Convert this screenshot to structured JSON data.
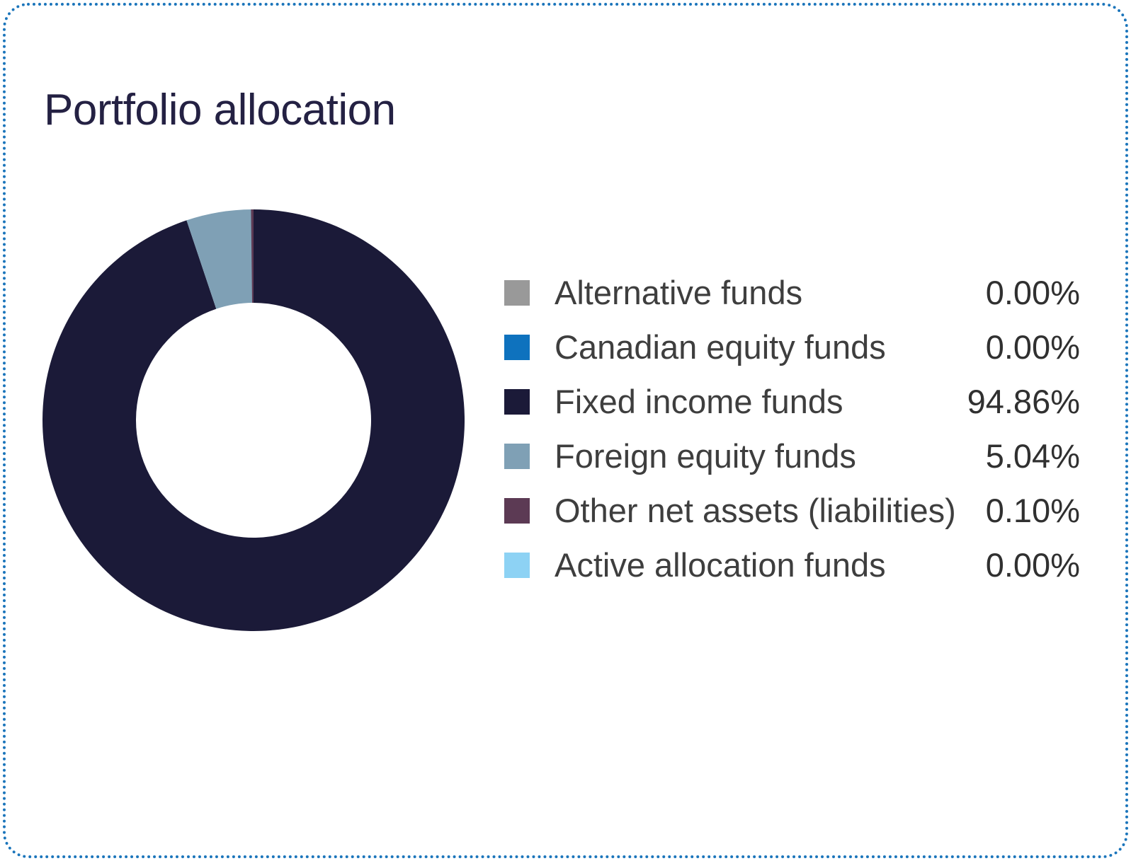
{
  "card": {
    "title": "Portfolio allocation",
    "background": "#FFFFFF",
    "border_color": "#1B75BB"
  },
  "legend": {
    "items": [
      {
        "label": "Alternative funds",
        "value": "0.00%",
        "color": "#999999"
      },
      {
        "label": "Canadian equity funds",
        "value": "0.00%",
        "color": "#0E72BE"
      },
      {
        "label": "Fixed income funds",
        "value": "94.86%",
        "color": "#1B1A38"
      },
      {
        "label": "Foreign equity funds",
        "value": "5.04%",
        "color": "#7FA0B5"
      },
      {
        "label": "Other net assets (liabilities)",
        "value": "0.10%",
        "color": "#5C3A54"
      },
      {
        "label": "Active allocation funds",
        "value": "0.00%",
        "color": "#8DD2F4"
      }
    ]
  },
  "chart_data": {
    "type": "pie",
    "subtype": "donut",
    "title": "Portfolio allocation",
    "categories": [
      "Alternative funds",
      "Canadian equity funds",
      "Fixed income funds",
      "Foreign equity funds",
      "Other net assets (liabilities)",
      "Active allocation funds"
    ],
    "values": [
      0.0,
      0.0,
      94.86,
      5.04,
      0.1,
      0.0
    ],
    "value_labels": [
      "0.00%",
      "0.00%",
      "94.86%",
      "5.04%",
      "0.10%",
      "0.00%"
    ],
    "colors": [
      "#999999",
      "#0E72BE",
      "#1B1A38",
      "#7FA0B5",
      "#5C3A54",
      "#8DD2F4"
    ],
    "start_angle_deg": 0,
    "direction": "clockwise",
    "inner_radius_ratio": 0.557,
    "legend_position": "right",
    "hole_fill": "#FFFFFF"
  }
}
